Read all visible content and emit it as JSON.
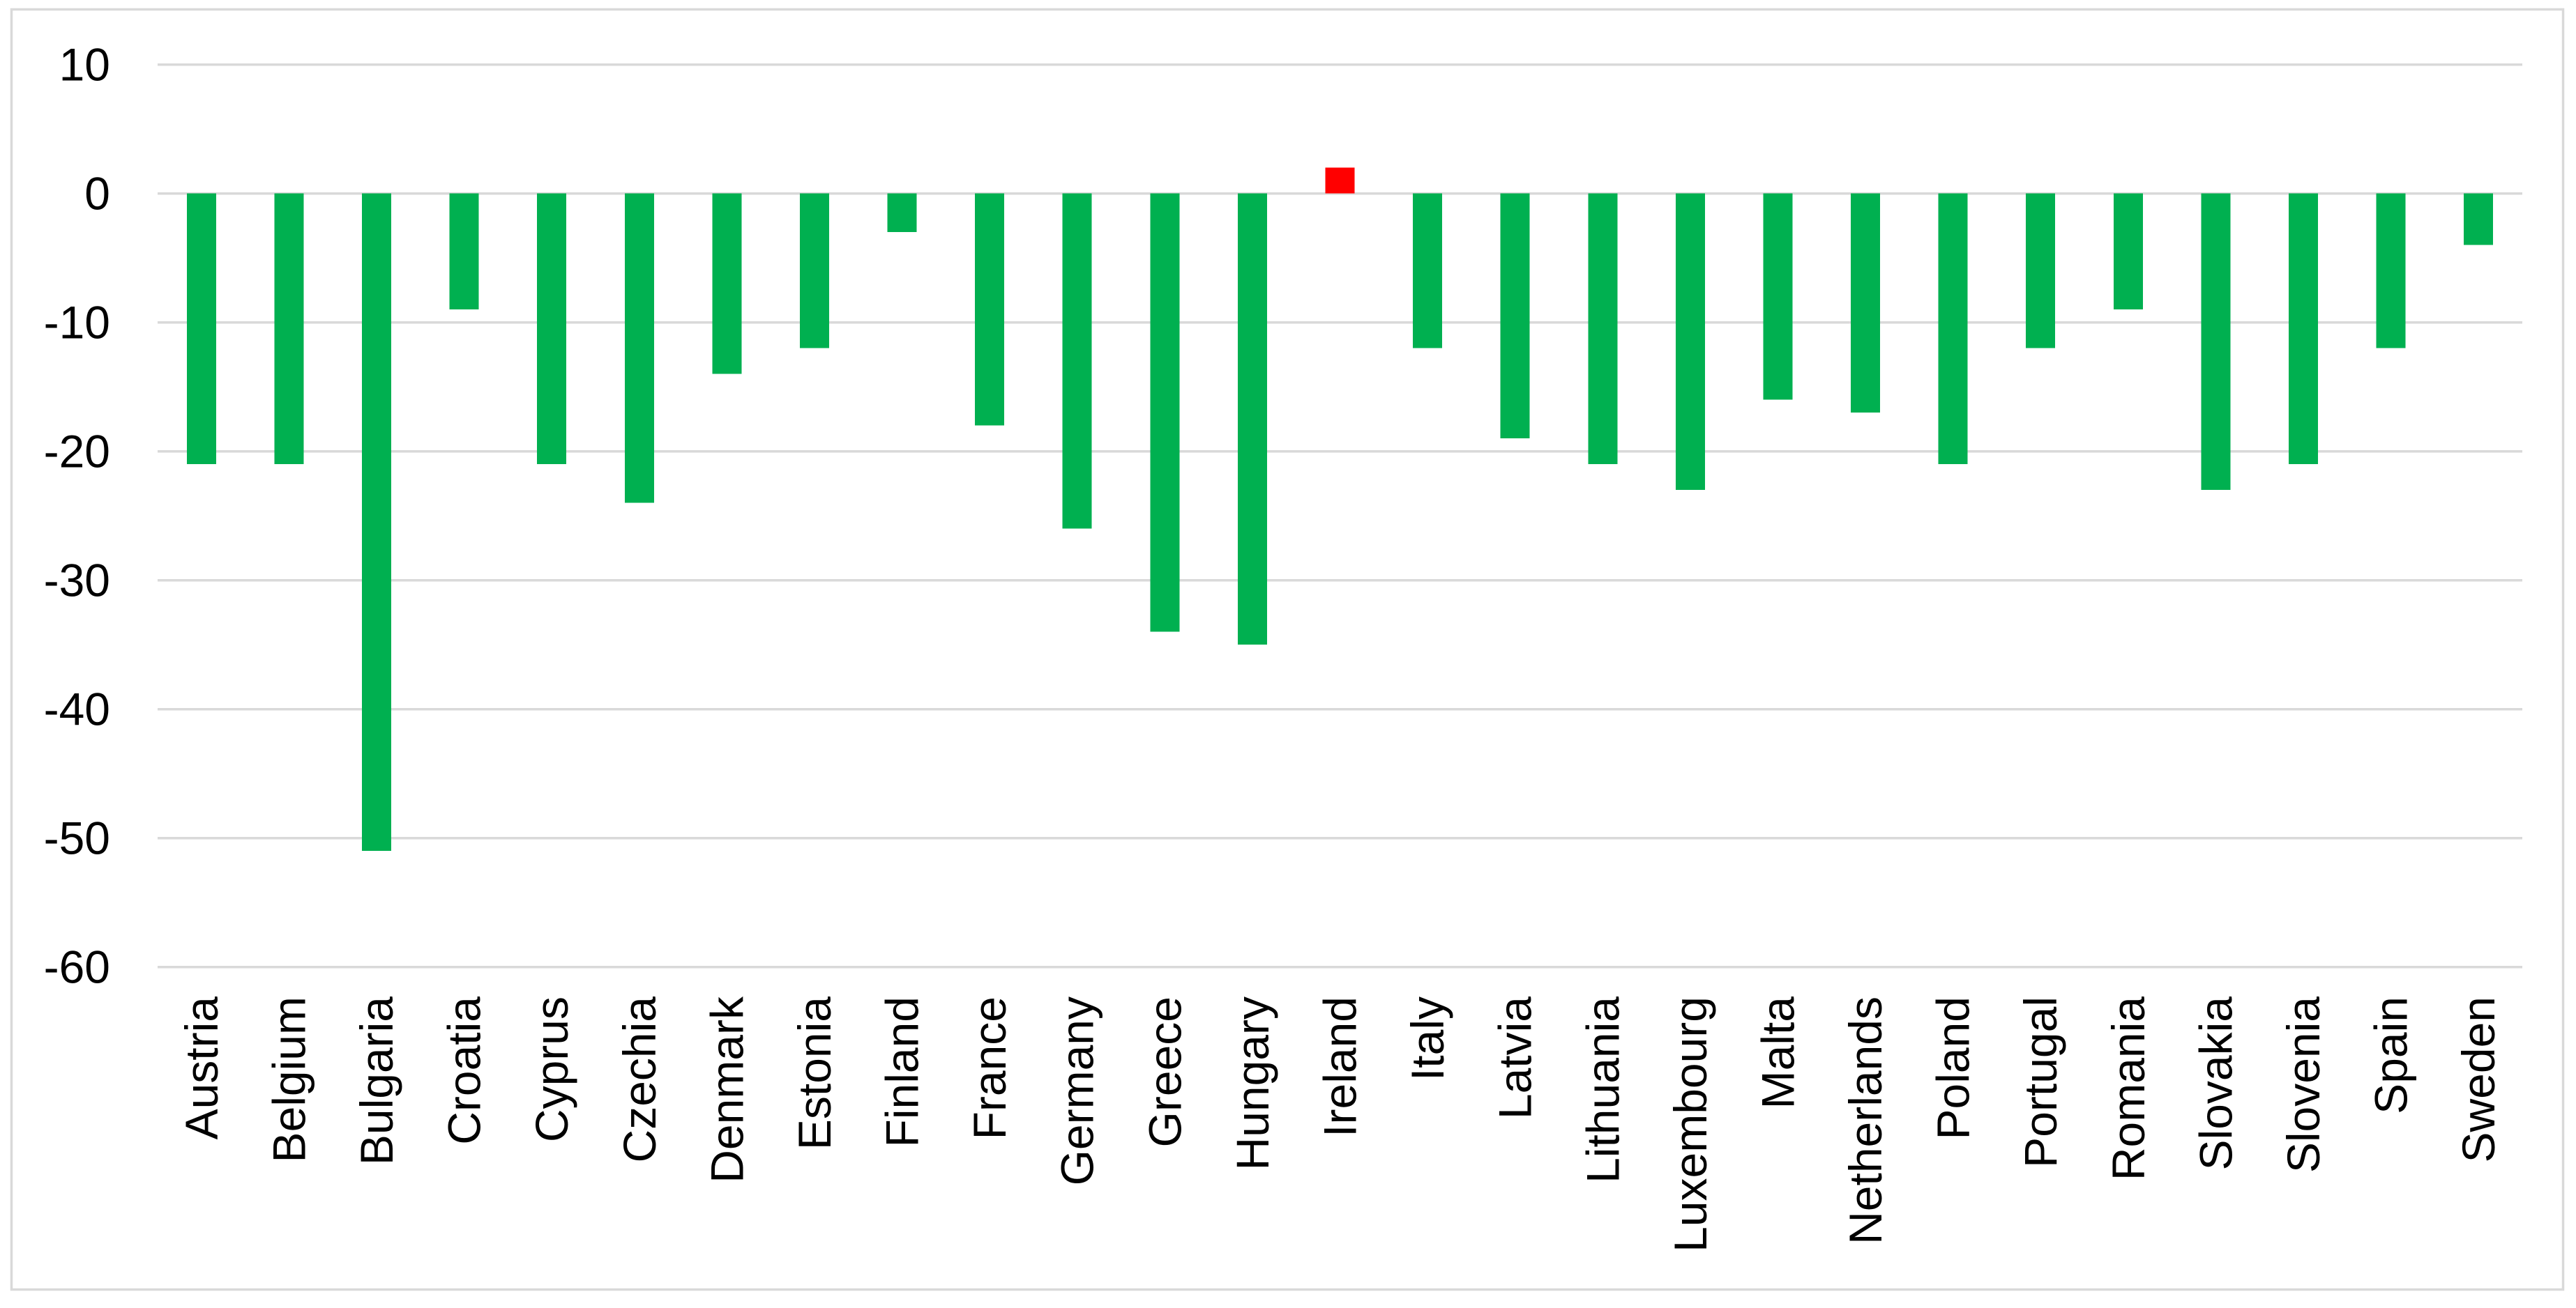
{
  "chart_data": {
    "type": "bar",
    "title": "",
    "categories": [
      "Austria",
      "Belgium",
      "Bulgaria",
      "Croatia",
      "Cyprus",
      "Czechia",
      "Denmark",
      "Estonia",
      "Finland",
      "France",
      "Germany",
      "Greece",
      "Hungary",
      "Ireland",
      "Italy",
      "Latvia",
      "Lithuania",
      "Luxembourg",
      "Malta",
      "Netherlands",
      "Poland",
      "Portugal",
      "Romania",
      "Slovakia",
      "Slovenia",
      "Spain",
      "Sweden"
    ],
    "values": [
      -21,
      -21,
      -51,
      -9,
      -21,
      -24,
      -14,
      -12,
      -3,
      -18,
      -26,
      -34,
      -35,
      2,
      -12,
      -19,
      -21,
      -23,
      -16,
      -17,
      -21,
      -12,
      -9,
      -23,
      -21,
      -12,
      -4
    ],
    "xlabel": "",
    "ylabel": "",
    "ylim": [
      -60,
      10
    ],
    "yticks": [
      10,
      0,
      -10,
      -20,
      -30,
      -40,
      -50,
      -60
    ],
    "ytick_labels": [
      "10",
      "0",
      "-10",
      "-20",
      "-30",
      "-40",
      "-50",
      "-60"
    ],
    "grid": true,
    "legend": false,
    "bar_color_default": "#00B050",
    "highlight": {
      "category": "Ireland",
      "color": "#FF0000"
    }
  },
  "colors": {
    "background": "#FFFFFF",
    "chart_border": "#D9D9D9",
    "gridline": "#D9D9D9",
    "axis_text": "#000000"
  }
}
